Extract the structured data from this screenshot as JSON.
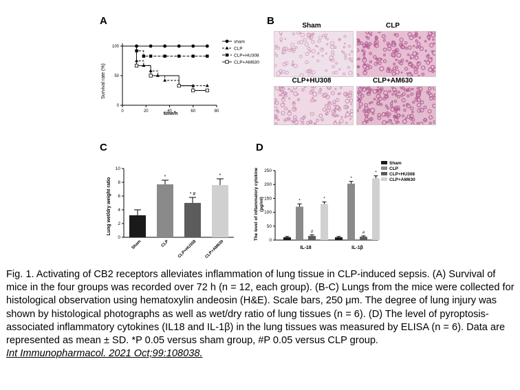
{
  "panelA": {
    "letter": "A",
    "chart_data": {
      "type": "line",
      "ylabel": "Survival rate (%)",
      "xlabel": "time/h",
      "xlim": [
        0,
        80
      ],
      "ylim": [
        0,
        100
      ],
      "xticks": [
        "0",
        "20",
        "40",
        "60",
        "80"
      ],
      "yticks": [
        "0",
        "50",
        "100"
      ],
      "legend_position": "right",
      "series": [
        {
          "name": "sham",
          "marker": "circle",
          "x": [
            0,
            12,
            24,
            36,
            48,
            60,
            72
          ],
          "y": [
            100,
            100,
            100,
            100,
            100,
            100,
            100
          ]
        },
        {
          "name": "CLP",
          "marker": "triangle",
          "x": [
            0,
            12,
            18,
            24,
            30,
            36,
            48,
            60,
            72
          ],
          "y": [
            100,
            75,
            67,
            58,
            50,
            42,
            33,
            33,
            33
          ]
        },
        {
          "name": "CLP+HU308",
          "marker": "square",
          "x": [
            0,
            12,
            18,
            24,
            36,
            48,
            60,
            72
          ],
          "y": [
            100,
            92,
            83,
            83,
            83,
            83,
            83,
            83
          ]
        },
        {
          "name": "CLP+AM630",
          "marker": "open-square",
          "x": [
            0,
            12,
            24,
            48,
            60,
            72
          ],
          "y": [
            100,
            67,
            50,
            33,
            25,
            25
          ]
        }
      ]
    }
  },
  "panelB": {
    "letter": "B",
    "images": [
      {
        "label": "Sham"
      },
      {
        "label": "CLP"
      },
      {
        "label": "CLP+HU308"
      },
      {
        "label": "CLP+AM630"
      }
    ]
  },
  "panelC": {
    "letter": "C",
    "chart_data": {
      "type": "bar",
      "ylabel": "Lung wet/dry weight ratio",
      "ylim": [
        0,
        10
      ],
      "yticks": [
        "0",
        "2",
        "4",
        "6",
        "8",
        "10"
      ],
      "categories": [
        "Sham",
        "CLP",
        "CLP+HU308",
        "CLP+AM630"
      ],
      "values": [
        3.2,
        7.7,
        5.0,
        7.6
      ],
      "errors": [
        0.8,
        0.6,
        0.8,
        0.9
      ],
      "annotations": [
        "",
        "*",
        "* #",
        "*"
      ],
      "colors": [
        "#1a1a1a",
        "#8a8a8a",
        "#5c5c5c",
        "#d0d0d0"
      ]
    }
  },
  "panelD": {
    "letter": "D",
    "chart_data": {
      "type": "bar",
      "ylabel_line1": "The level of inflammatory cytokine",
      "ylabel_line2": "(pg/ml)",
      "ylim": [
        0,
        250
      ],
      "yticks": [
        "0",
        "50",
        "100",
        "150",
        "200",
        "250"
      ],
      "categories": [
        "IL-18",
        "IL-1β"
      ],
      "legend_position": "top-right",
      "series": [
        {
          "name": "Sham",
          "color": "#1a1a1a",
          "values": [
            10,
            10
          ],
          "errors": [
            3,
            3
          ],
          "annotations": [
            "",
            ""
          ]
        },
        {
          "name": "CLP",
          "color": "#8a8a8a",
          "values": [
            120,
            203
          ],
          "errors": [
            10,
            8
          ],
          "annotations": [
            "*",
            "*"
          ]
        },
        {
          "name": "CLP+HU308",
          "color": "#5c5c5c",
          "values": [
            15,
            12
          ],
          "errors": [
            4,
            3
          ],
          "annotations": [
            "#",
            "#"
          ]
        },
        {
          "name": "CLP+AM630",
          "color": "#d0d0d0",
          "values": [
            130,
            222
          ],
          "errors": [
            7,
            9
          ],
          "annotations": [
            "*",
            "*"
          ]
        }
      ]
    }
  },
  "caption": {
    "text": "Fig. 1. Activating of CB2 receptors alleviates inflammation of lung tissue in CLP-induced sepsis. (A) Survival of mice in the four groups was recorded over 72 h (n = 12, each group). (B-C) Lungs from the mice were collected for histological observation using hematoxylin andeosin (H&E). Scale bars, 250 μm. The degree of lung injury was shown by histological photographs as well as wet/dry ratio of lung tissues (n = 6). (D) The level of pyroptosis-associated inflammatory cytokines (IL18 and IL-1β) in the lung tissues was measured by ELISA (n = 6). Data are represented as mean ± SD. *P 0.05 versus sham group, #P 0.05 versus CLP group.",
    "citation": "Int Immunopharmacol. 2021 Oct;99:108038."
  }
}
